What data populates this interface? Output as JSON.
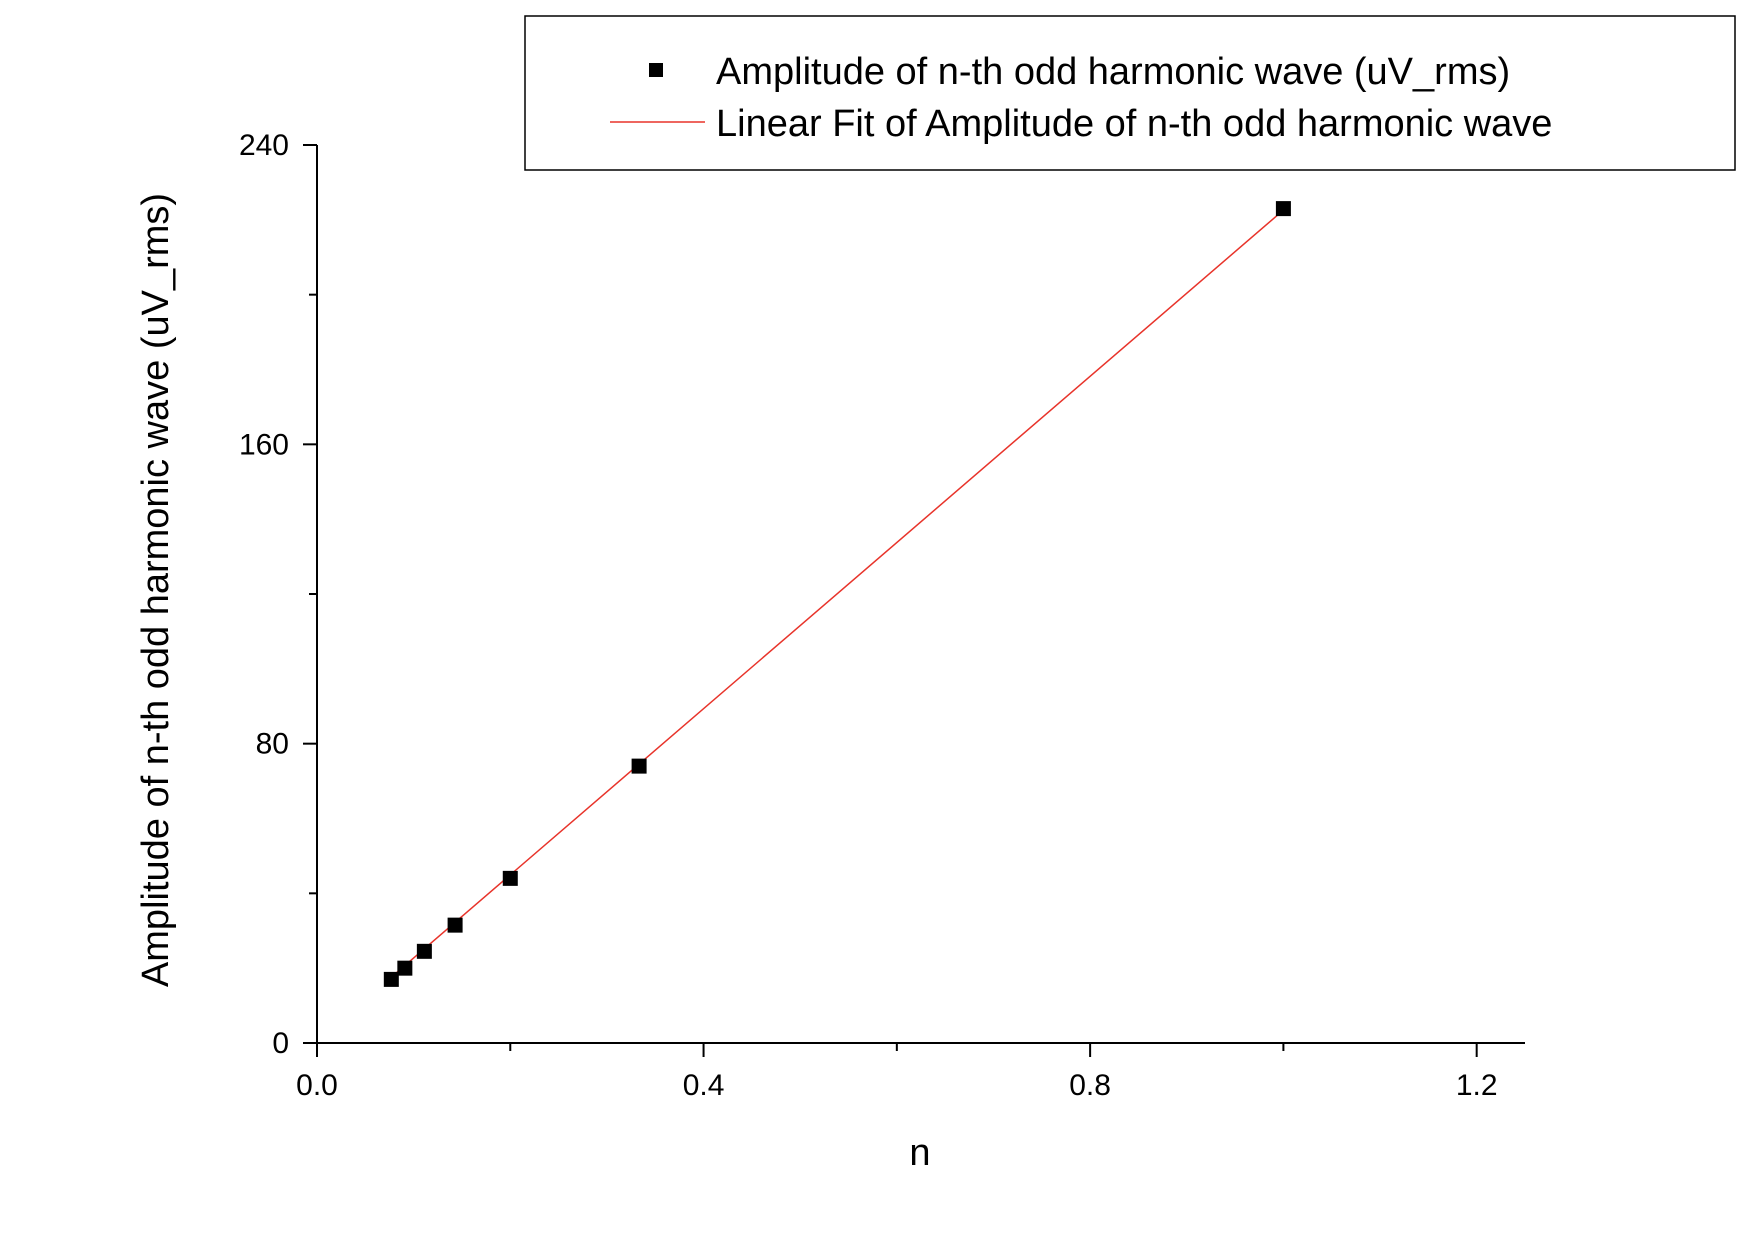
{
  "chart_data": {
    "type": "scatter",
    "xlabel": "n",
    "ylabel": "Amplitude of n-th odd harmonic wave (uV_rms)",
    "xlim": [
      0.0,
      1.25
    ],
    "ylim": [
      0,
      240
    ],
    "xticks": [
      0.0,
      0.4,
      0.8,
      1.2
    ],
    "xtick_labels": [
      "0.0",
      "0.4",
      "0.8",
      "1.2"
    ],
    "yticks": [
      0,
      80,
      160,
      240
    ],
    "ytick_labels": [
      "0",
      "80",
      "160",
      "240"
    ],
    "grid": false,
    "legend_position": "top-right",
    "series": [
      {
        "name": "Amplitude of n-th odd harmonic wave (uV_rms)",
        "kind": "scatter",
        "marker": "square",
        "color": "#000000",
        "x": [
          0.0769,
          0.0909,
          0.1111,
          0.1429,
          0.2,
          0.3333,
          1.0
        ],
        "y": [
          17.0,
          20.0,
          24.5,
          31.5,
          44.0,
          74.0,
          223.0
        ]
      },
      {
        "name": "Linear Fit of Amplitude of n-th odd harmonic wave",
        "kind": "line",
        "color": "#e8332a",
        "x": [
          0.0769,
          1.0
        ],
        "y": [
          17.6,
          222.6
        ]
      }
    ]
  }
}
